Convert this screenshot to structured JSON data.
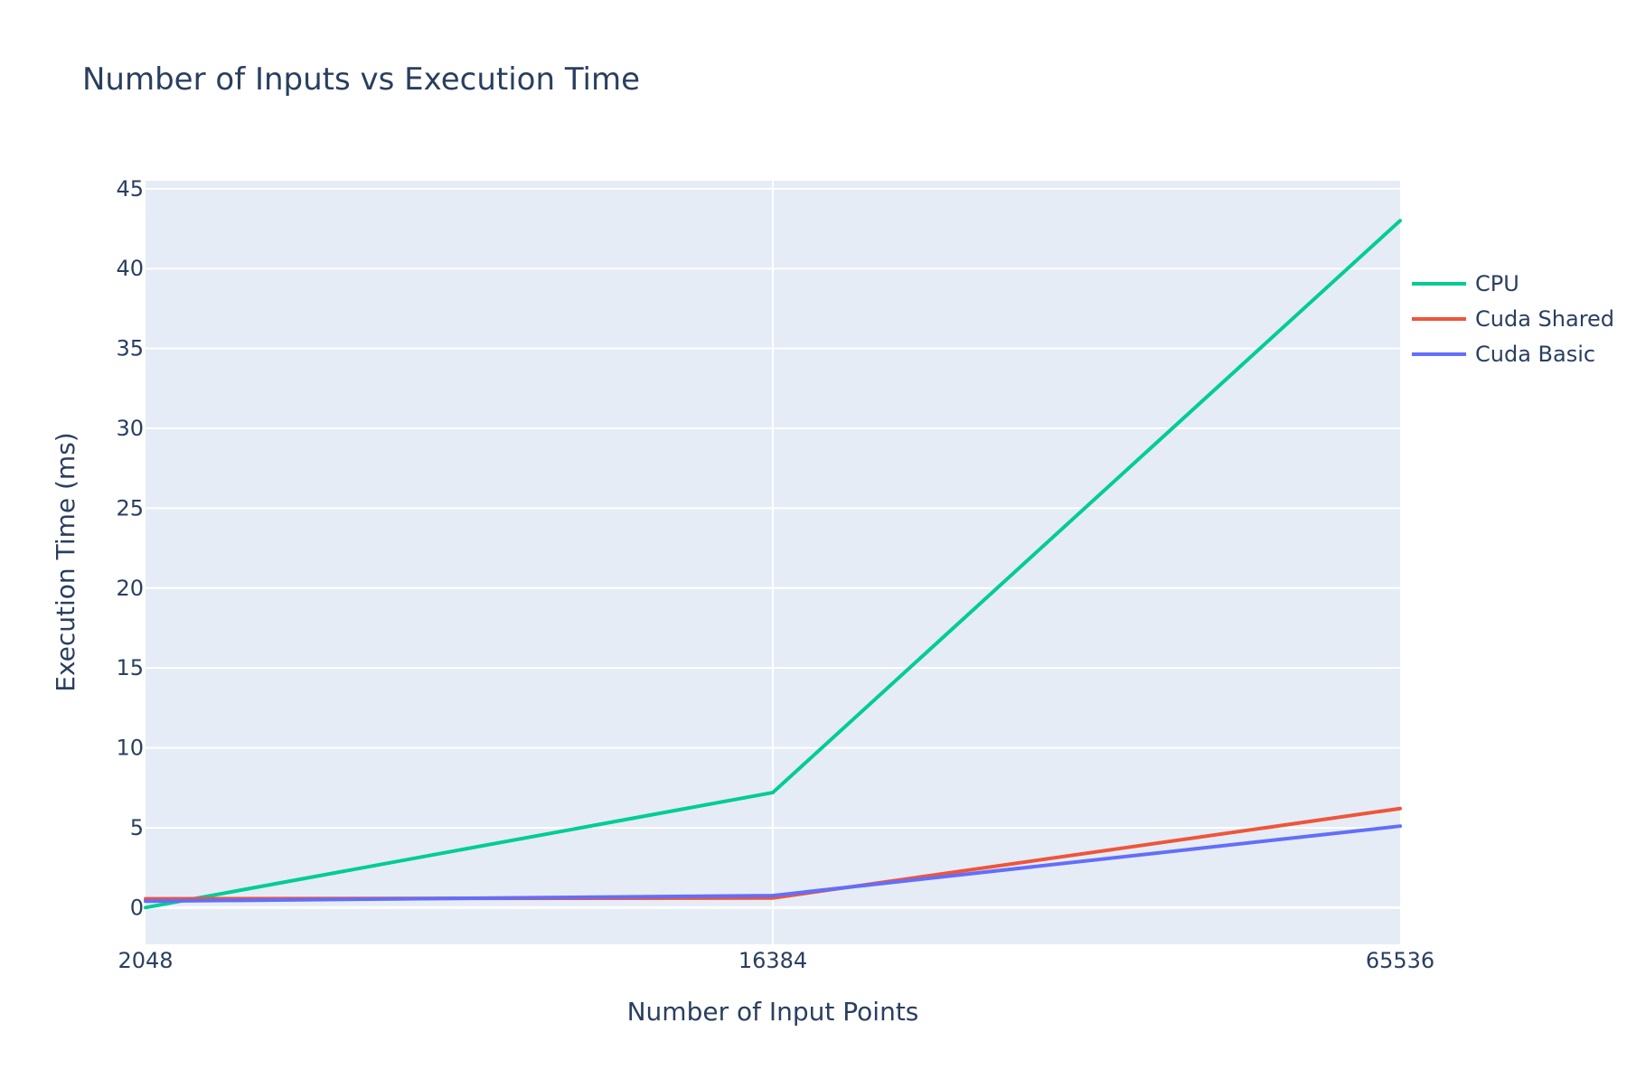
{
  "chart_data": {
    "type": "line",
    "title": "Number of Inputs vs Execution Time",
    "xlabel": "Number of Input Points",
    "ylabel": "Execution Time (ms)",
    "x_scale": "category",
    "categories": [
      "2048",
      "16384",
      "65536"
    ],
    "ylim": [
      -2.3,
      45.5
    ],
    "y_ticks": [
      0,
      5,
      10,
      15,
      20,
      25,
      30,
      35,
      40,
      45
    ],
    "grid": true,
    "legend_position": "right",
    "plot_background": "#e5ecf6",
    "series": [
      {
        "name": "CPU",
        "color": "#00cc96",
        "values": [
          0.0,
          7.2,
          43.0
        ]
      },
      {
        "name": "Cuda Shared",
        "color": "#ef553b",
        "values": [
          0.55,
          0.6,
          6.2
        ]
      },
      {
        "name": "Cuda Basic",
        "color": "#636efa",
        "values": [
          0.4,
          0.75,
          5.1
        ]
      }
    ]
  }
}
